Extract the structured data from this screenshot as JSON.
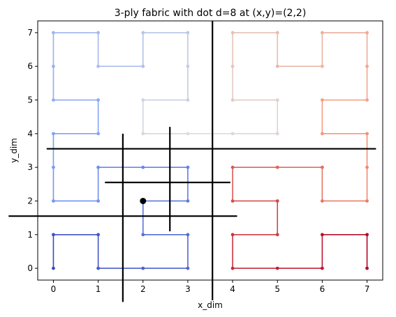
{
  "chart_data": {
    "type": "line",
    "title": "3-ply fabric with dot d=8 at (x,y)=(2,2)",
    "xlabel": "x_dim",
    "ylabel": "y_dim",
    "xlim": [
      -0.35,
      7.35
    ],
    "ylim": [
      -0.35,
      7.35
    ],
    "xticks": [
      0,
      1,
      2,
      3,
      4,
      5,
      6,
      7
    ],
    "yticks": [
      0,
      1,
      2,
      3,
      4,
      5,
      6,
      7
    ],
    "grid": false,
    "path": [
      [
        0,
        0
      ],
      [
        0,
        1
      ],
      [
        1,
        1
      ],
      [
        1,
        0
      ],
      [
        2,
        0
      ],
      [
        3,
        0
      ],
      [
        3,
        1
      ],
      [
        2,
        1
      ],
      [
        2,
        2
      ],
      [
        3,
        2
      ],
      [
        3,
        3
      ],
      [
        2,
        3
      ],
      [
        1,
        3
      ],
      [
        1,
        2
      ],
      [
        0,
        2
      ],
      [
        0,
        3
      ],
      [
        0,
        4
      ],
      [
        1,
        4
      ],
      [
        1,
        5
      ],
      [
        0,
        5
      ],
      [
        0,
        6
      ],
      [
        0,
        7
      ],
      [
        1,
        7
      ],
      [
        1,
        6
      ],
      [
        2,
        6
      ],
      [
        2,
        7
      ],
      [
        3,
        7
      ],
      [
        3,
        6
      ],
      [
        3,
        5
      ],
      [
        2,
        5
      ],
      [
        2,
        4
      ],
      [
        3,
        4
      ],
      [
        4,
        4
      ],
      [
        5,
        4
      ],
      [
        5,
        5
      ],
      [
        4,
        5
      ],
      [
        4,
        6
      ],
      [
        4,
        7
      ],
      [
        5,
        7
      ],
      [
        5,
        6
      ],
      [
        6,
        6
      ],
      [
        6,
        7
      ],
      [
        7,
        7
      ],
      [
        7,
        6
      ],
      [
        7,
        5
      ],
      [
        6,
        5
      ],
      [
        6,
        4
      ],
      [
        7,
        4
      ],
      [
        7,
        3
      ],
      [
        7,
        2
      ],
      [
        6,
        2
      ],
      [
        6,
        3
      ],
      [
        5,
        3
      ],
      [
        4,
        3
      ],
      [
        4,
        2
      ],
      [
        5,
        2
      ],
      [
        5,
        1
      ],
      [
        4,
        1
      ],
      [
        4,
        0
      ],
      [
        5,
        0
      ],
      [
        6,
        0
      ],
      [
        6,
        1
      ],
      [
        7,
        1
      ],
      [
        7,
        0
      ]
    ],
    "colormap": "coolwarm",
    "cuts": [
      {
        "orientation": "vertical",
        "x": 3.55,
        "y_range": [
          -0.95,
          7.35
        ]
      },
      {
        "orientation": "vertical",
        "x": 1.55,
        "y_range": [
          -1.0,
          4.0
        ]
      },
      {
        "orientation": "vertical",
        "x": 2.6,
        "y_range": [
          1.1,
          4.2
        ]
      },
      {
        "orientation": "horizontal",
        "y": 3.55,
        "x_range": [
          -0.15,
          7.2
        ]
      },
      {
        "orientation": "horizontal",
        "y": 2.55,
        "x_range": [
          1.15,
          3.95
        ]
      },
      {
        "orientation": "horizontal",
        "y": 1.55,
        "x_range": [
          -1.0,
          4.1
        ]
      }
    ],
    "dot": {
      "x": 2,
      "y": 2,
      "d": 8,
      "color": "#000000"
    }
  }
}
